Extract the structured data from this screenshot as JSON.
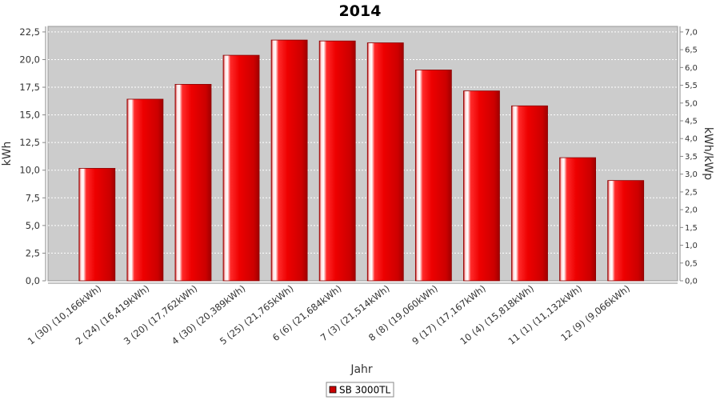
{
  "chart_data": {
    "type": "bar",
    "title": "2014",
    "xlabel": "Jahr",
    "ylabel": "kWh",
    "y2label": "kWh/kWp",
    "ylim": [
      0,
      23
    ],
    "y2lim": [
      0,
      7.1556
    ],
    "yticks": [
      "0,0",
      "2,5",
      "5,0",
      "7,5",
      "10,0",
      "12,5",
      "15,0",
      "17,5",
      "20,0",
      "22,5"
    ],
    "y2ticks": [
      "0,0",
      "0,5",
      "1,0",
      "1,5",
      "2,0",
      "2,5",
      "3,0",
      "3,5",
      "4,0",
      "4,5",
      "5,0",
      "5,5",
      "6,0",
      "6,5",
      "7,0"
    ],
    "categories": [
      "1 (30)  (10,166kWh)",
      "2 (24)  (16,419kWh)",
      "3 (20)  (17,762kWh)",
      "4 (30)  (20,389kWh)",
      "5 (25)  (21,765kWh)",
      "6 (6)  (21,684kWh)",
      "7 (3)  (21,514kWh)",
      "8 (8)  (19,060kWh)",
      "9 (17)  (17,167kWh)",
      "10 (4)  (15,818kWh)",
      "11 (1)  (11,132kWh)",
      "12 (9)  (9,066kWh)"
    ],
    "series": [
      {
        "name": "SB 3000TL",
        "color": "#dd0000",
        "values": [
          10.166,
          16.419,
          17.762,
          20.389,
          21.765,
          21.684,
          21.514,
          19.06,
          17.167,
          15.818,
          11.132,
          9.066
        ]
      }
    ],
    "grid": true,
    "legend": "bottom-center",
    "plot_background": "#cccccc"
  }
}
